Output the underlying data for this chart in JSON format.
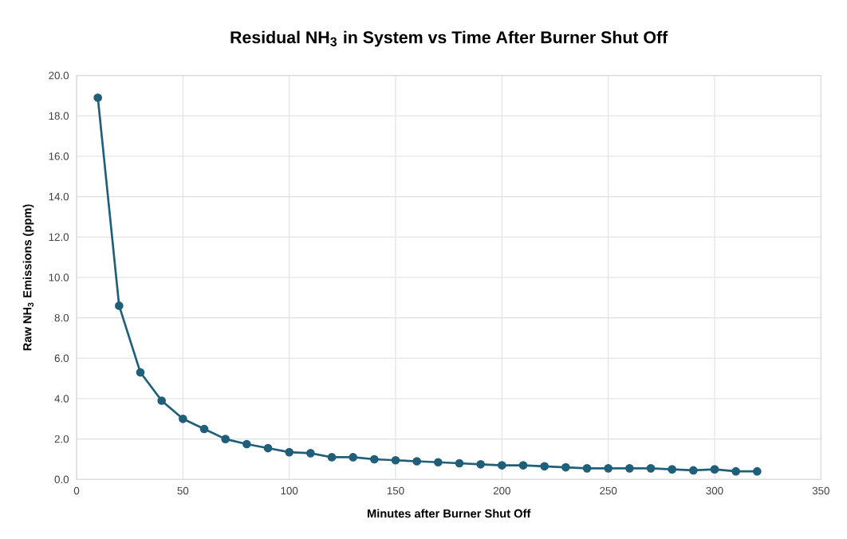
{
  "chart_data": {
    "type": "line",
    "title": "Residual NH$_{3}$ in System vs Time After Burner Shut Off",
    "xlabel": "Minutes after Burner Shut Off",
    "ylabel": "Raw NH$_{3}$ Emissions (ppm)",
    "x": [
      10,
      20,
      30,
      40,
      50,
      60,
      70,
      80,
      90,
      100,
      110,
      120,
      130,
      140,
      150,
      160,
      170,
      180,
      190,
      200,
      210,
      220,
      230,
      240,
      250,
      260,
      270,
      280,
      290,
      300,
      310,
      320
    ],
    "series": [
      {
        "color": "#1f5f7a",
        "values": [
          18.9,
          8.6,
          5.3,
          3.9,
          3.0,
          2.5,
          2.0,
          1.75,
          1.55,
          1.35,
          1.3,
          1.1,
          1.1,
          1.0,
          0.95,
          0.9,
          0.85,
          0.8,
          0.75,
          0.7,
          0.7,
          0.65,
          0.6,
          0.55,
          0.55,
          0.55,
          0.55,
          0.5,
          0.45,
          0.5,
          0.4,
          0.4
        ]
      }
    ],
    "xlim": [
      0,
      350
    ],
    "xticks": [
      0,
      50,
      100,
      150,
      200,
      250,
      300,
      350
    ],
    "ylim": [
      0,
      20
    ],
    "yticks": [
      {
        "value": 0,
        "label": "0.0"
      },
      {
        "value": 2,
        "label": "2.0"
      },
      {
        "value": 4,
        "label": "4.0"
      },
      {
        "value": 6,
        "label": "6.0"
      },
      {
        "value": 8,
        "label": "8.0"
      },
      {
        "value": 10,
        "label": "10.0"
      },
      {
        "value": 12,
        "label": "12.0"
      },
      {
        "value": 14,
        "label": "14.0"
      },
      {
        "value": 16,
        "label": "16.0"
      },
      {
        "value": 18,
        "label": "18.0"
      },
      {
        "value": 20,
        "label": "20.0"
      }
    ],
    "grid": true,
    "marker": "circle",
    "line_style": "solid"
  }
}
